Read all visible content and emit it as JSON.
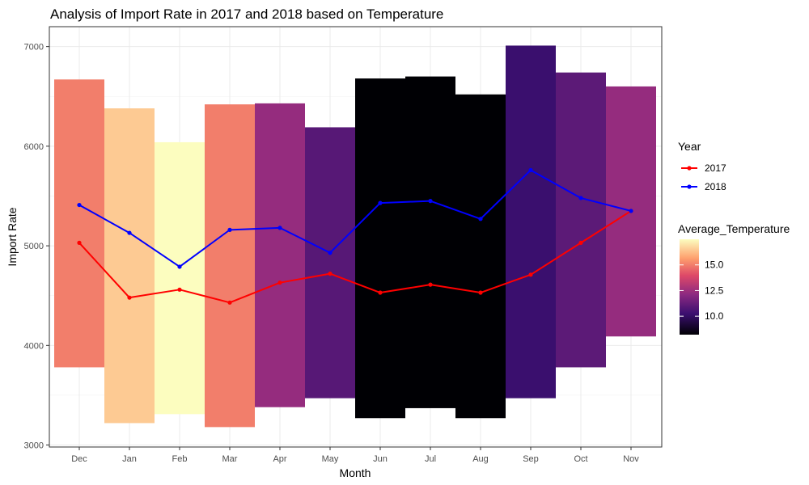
{
  "chart_data": {
    "type": "bar",
    "title": "Analysis of Import Rate in 2017 and 2018 based on Temperature",
    "xlabel": "Month",
    "ylabel": "Import Rate",
    "categories": [
      "Dec",
      "Jan",
      "Feb",
      "Mar",
      "Apr",
      "May",
      "Jun",
      "Jul",
      "Aug",
      "Sep",
      "Oct",
      "Nov"
    ],
    "ylim": [
      2980,
      7200
    ],
    "yticks": [
      3000,
      4000,
      5000,
      6000,
      7000
    ],
    "grid": true,
    "bars": {
      "ymin": [
        3780,
        3220,
        3310,
        3180,
        3380,
        3470,
        3270,
        3370,
        3270,
        3470,
        3780,
        4090
      ],
      "ymax": [
        6670,
        6380,
        6040,
        6420,
        6430,
        6190,
        6680,
        6700,
        6520,
        7010,
        6740,
        6600
      ],
      "average_temperature": [
        15.0,
        16.5,
        17.5,
        15.0,
        12.3,
        10.9,
        8.2,
        8.2,
        8.2,
        10.2,
        11.0,
        12.3
      ]
    },
    "series": [
      {
        "name": "2017",
        "color": "#ff0000",
        "values": [
          5030,
          4480,
          4560,
          4430,
          4630,
          4720,
          4530,
          4610,
          4530,
          4710,
          5030,
          5350
        ]
      },
      {
        "name": "2018",
        "color": "#0000ff",
        "values": [
          5410,
          5130,
          4790,
          5160,
          5180,
          4930,
          5430,
          5450,
          5270,
          5760,
          5480,
          5350
        ]
      }
    ],
    "legend": {
      "position": "right",
      "year_title": "Year",
      "temperature_title": "Average_Temperature",
      "temperature_ticks": [
        "10.0",
        "12.5",
        "15.0"
      ],
      "temperature_tick_values": [
        10.0,
        12.5,
        15.0
      ],
      "temperature_range": [
        8.2,
        17.5
      ]
    }
  }
}
